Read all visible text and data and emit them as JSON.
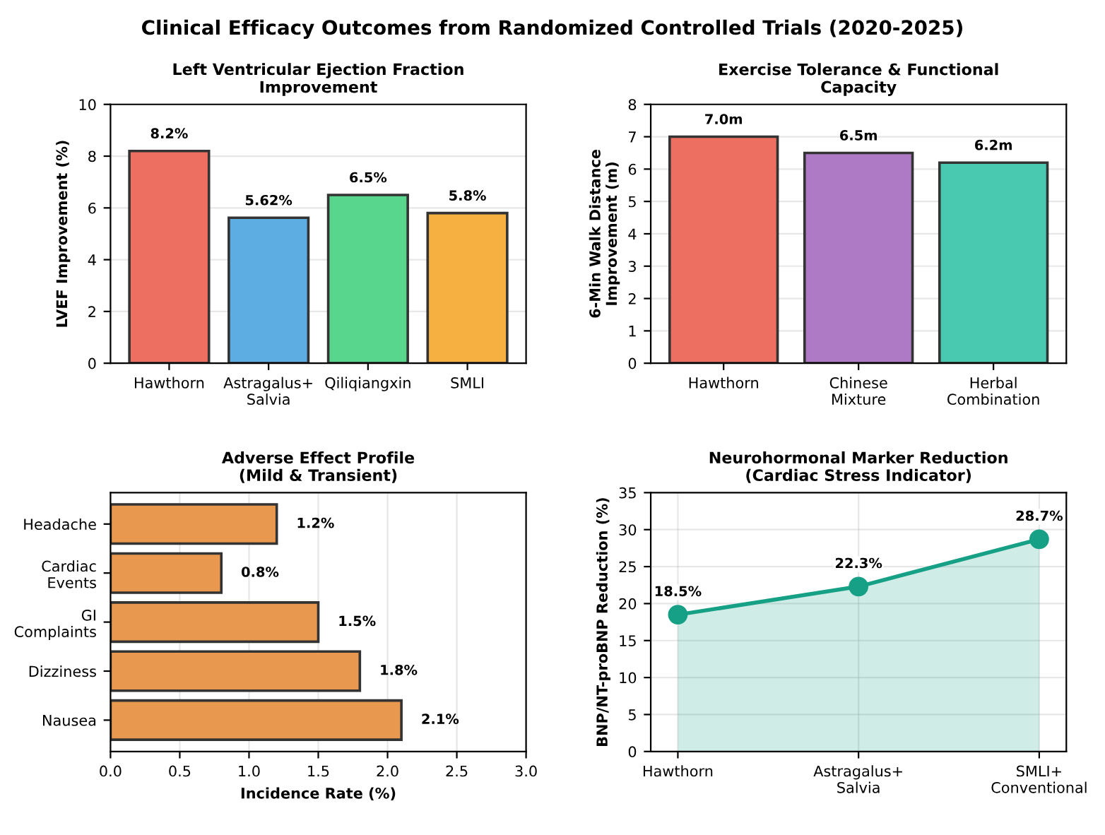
{
  "chart_data": [
    {
      "type": "bar",
      "title": "Left Ventricular Ejection Fraction\nImprovement",
      "ylabel": "LVEF Improvement (%)",
      "annotations": [
        "Clinical Efficacy Outcomes from Randomized Controlled Trials (2020-2025)"
      ],
      "categories": [
        "Hawthorn",
        "Astragalus+\nSalvia",
        "Qiliqiangxin",
        "SMLI"
      ],
      "values": [
        8.2,
        5.62,
        6.5,
        5.8
      ],
      "colors": [
        "#ec6f61",
        "#5dade2",
        "#58d68d",
        "#f5b041"
      ],
      "value_labels": [
        "8.2%",
        "5.62%",
        "6.5%",
        "5.8%"
      ],
      "ylim": [
        0,
        10
      ],
      "yticks": [
        0,
        2,
        4,
        6,
        8,
        10
      ],
      "grid": "y"
    },
    {
      "type": "bar",
      "title": "Exercise Tolerance & Functional\nCapacity",
      "ylabel": "6-Min Walk Distance\nImprovement (m)",
      "categories": [
        "Hawthorn",
        "Chinese\nMixture",
        "Herbal\nCombination"
      ],
      "values": [
        7.0,
        6.5,
        6.2
      ],
      "colors": [
        "#ec6f61",
        "#af7ac5",
        "#48c9b0"
      ],
      "value_labels": [
        "7.0m",
        "6.5m",
        "6.2m"
      ],
      "ylim": [
        0,
        8
      ],
      "yticks": [
        0,
        1,
        2,
        3,
        4,
        5,
        6,
        7,
        8
      ],
      "grid": "y"
    },
    {
      "type": "bar",
      "orientation": "horizontal",
      "title": "Adverse Effect Profile\n(Mild & Transient)",
      "xlabel": "Incidence Rate (%)",
      "categories": [
        "Headache",
        "Cardiac\nEvents",
        "GI\nComplaints",
        "Dizziness",
        "Nausea"
      ],
      "values": [
        1.2,
        0.8,
        1.5,
        1.8,
        2.1
      ],
      "color": "#e8984f",
      "value_labels": [
        "1.2%",
        "0.8%",
        "1.5%",
        "1.8%",
        "2.1%"
      ],
      "xlim": [
        0,
        3
      ],
      "xticks": [
        {
          "value": 0,
          "label": "0.0"
        },
        0.5,
        {
          "value": 1,
          "label": "1.0"
        },
        1.5,
        {
          "value": 2,
          "label": "2.0"
        },
        2.5,
        {
          "value": 3,
          "label": "3.0"
        }
      ],
      "grid": "x"
    },
    {
      "type": "area",
      "title": "Neurohormonal Marker Reduction\n(Cardiac Stress Indicator)",
      "ylabel": "BNP/NT-proBNP Reduction (%)",
      "categories": [
        "Hawthorn",
        "Astragalus+\nSalvia",
        "SMLI+\nConventional"
      ],
      "values": [
        18.5,
        22.3,
        28.7
      ],
      "color": "#16a085",
      "marker": "circle",
      "line_style": "solid",
      "value_labels": [
        "18.5%",
        "22.3%",
        "28.7%"
      ],
      "ylim": [
        0,
        35
      ],
      "yticks": [
        0,
        5,
        10,
        15,
        20,
        25,
        30,
        35
      ],
      "grid": true
    }
  ]
}
